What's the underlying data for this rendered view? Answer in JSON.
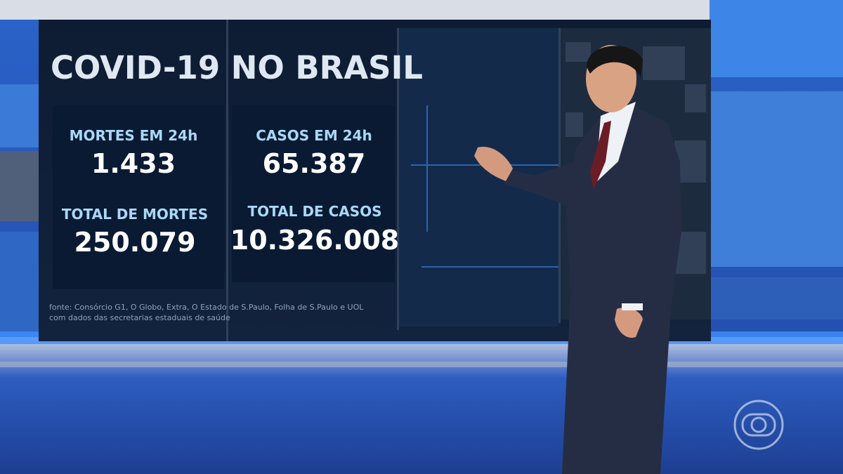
{
  "screen": {
    "title": "COVID-19 NO BRASIL",
    "stats": [
      {
        "label": "MORTES EM 24h",
        "value": "1.433"
      },
      {
        "label": "CASOS EM 24h",
        "value": "65.387"
      },
      {
        "label": "TOTAL DE MORTES",
        "value": "250.079"
      },
      {
        "label": "TOTAL DE CASOS",
        "value": "10.326.008"
      }
    ],
    "source": [
      "fonte: Consórcio G1, O Globo, Extra, O Estado de S.Paulo, Folha de S.Paulo e UOL",
      "com dados das secretarias estaduais de saúde"
    ]
  }
}
